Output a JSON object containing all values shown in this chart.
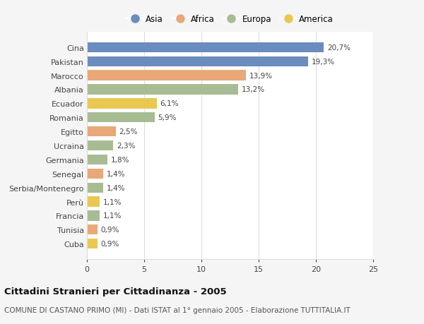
{
  "countries": [
    "Cina",
    "Pakistan",
    "Marocco",
    "Albania",
    "Ecuador",
    "Romania",
    "Egitto",
    "Ucraina",
    "Germania",
    "Senegal",
    "Serbia/Montenegro",
    "Perù",
    "Francia",
    "Tunisia",
    "Cuba"
  ],
  "values": [
    20.7,
    19.3,
    13.9,
    13.2,
    6.1,
    5.9,
    2.5,
    2.3,
    1.8,
    1.4,
    1.4,
    1.1,
    1.1,
    0.9,
    0.9
  ],
  "labels": [
    "20,7%",
    "19,3%",
    "13,9%",
    "13,2%",
    "6,1%",
    "5,9%",
    "2,5%",
    "2,3%",
    "1,8%",
    "1,4%",
    "1,4%",
    "1,1%",
    "1,1%",
    "0,9%",
    "0,9%"
  ],
  "continents": [
    "Asia",
    "Asia",
    "Africa",
    "Europa",
    "America",
    "Europa",
    "Africa",
    "Europa",
    "Europa",
    "Africa",
    "Europa",
    "America",
    "Europa",
    "Africa",
    "America"
  ],
  "colors": {
    "Asia": "#6b8cbe",
    "Africa": "#e8a878",
    "Europa": "#a8bc94",
    "America": "#e8c850"
  },
  "legend_colors": {
    "Asia": "#6b8cbe",
    "Africa": "#e8a878",
    "Europa": "#a8bc94",
    "America": "#e8c850"
  },
  "xlim": [
    0,
    25
  ],
  "xticks": [
    0,
    5,
    10,
    15,
    20,
    25
  ],
  "title": "Cittadini Stranieri per Cittadinanza - 2005",
  "subtitle": "COMUNE DI CASTANO PRIMO (MI) - Dati ISTAT al 1° gennaio 2005 - Elaborazione TUTTITALIA.IT",
  "bg_color": "#f5f5f5",
  "plot_bg_color": "#ffffff",
  "bar_height": 0.72,
  "grid_color": "#dddddd",
  "legend_order": [
    "Asia",
    "Africa",
    "Europa",
    "America"
  ]
}
